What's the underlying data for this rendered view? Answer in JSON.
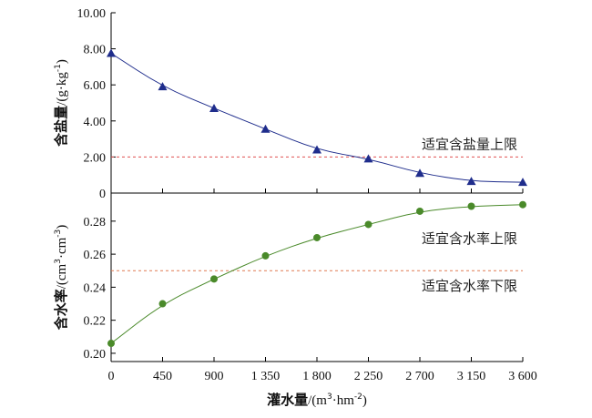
{
  "chart_data": [
    {
      "type": "line",
      "x": [
        0,
        450,
        900,
        1350,
        1800,
        2250,
        2700,
        3150,
        3600
      ],
      "series": [
        {
          "values": [
            7.75,
            5.9,
            4.7,
            3.55,
            2.4,
            1.9,
            1.1,
            0.65,
            0.6
          ],
          "color": "#1f2d8c",
          "marker": "triangle"
        }
      ],
      "ylabel_main": "含盐量",
      "ylabel_unit": "/(g·kg",
      "ylabel_sup": "-1",
      "ylabel_close": ")",
      "ylim": [
        0,
        10
      ],
      "yticks": [
        0,
        2,
        4,
        6,
        8,
        10
      ],
      "ytick_labels": [
        "0",
        "2.00",
        "4.00",
        "6.00",
        "8.00",
        "10.00"
      ],
      "reference_lines": [
        {
          "y": 2.0,
          "label": "适宜含盐量上限",
          "color": "#e05050"
        }
      ]
    },
    {
      "type": "line",
      "x": [
        0,
        450,
        900,
        1350,
        1800,
        2250,
        2700,
        3150,
        3600
      ],
      "series": [
        {
          "values": [
            0.206,
            0.23,
            0.245,
            0.259,
            0.27,
            0.278,
            0.286,
            0.289,
            0.29
          ],
          "color": "#4a8a2a",
          "marker": "circle"
        }
      ],
      "ylabel_main": "含水率",
      "ylabel_unit": "/(cm",
      "ylabel_sup1": "3",
      "ylabel_mid": "·cm",
      "ylabel_sup2": "-3",
      "ylabel_close": ")",
      "ylim": [
        0.195,
        0.297
      ],
      "yticks": [
        0.2,
        0.22,
        0.24,
        0.26,
        0.28
      ],
      "ytick_labels": [
        "0.20",
        "0.22",
        "0.24",
        "0.26",
        "0.28"
      ],
      "reference_lines": [
        {
          "y": 0.25,
          "label_upper": "适宜含水率上限",
          "label_lower": "适宜含水率下限",
          "color": "#e07a50"
        }
      ]
    }
  ],
  "x_axis": {
    "tick_labels": [
      "0",
      "450",
      "900",
      "1 350",
      "1 800",
      "2 250",
      "2 700",
      "3 150",
      "3 600"
    ],
    "xlabel_main": "灌水量",
    "xlabel_unit": "/(m",
    "xlabel_sup1": "3",
    "xlabel_mid": "·hm",
    "xlabel_sup2": "-2",
    "xlabel_close": ")",
    "xlim": [
      0,
      3600
    ]
  }
}
